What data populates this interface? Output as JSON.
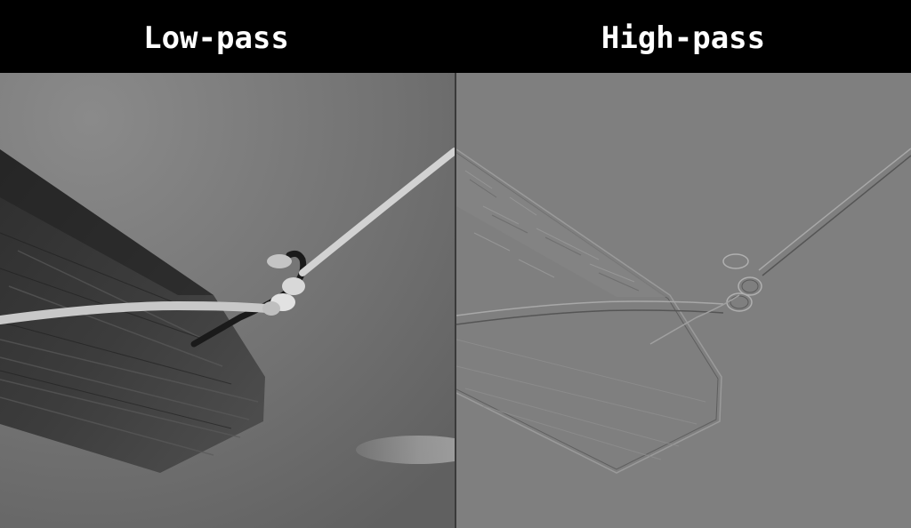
{
  "titles": {
    "left": "Low-pass",
    "right": "High-pass"
  },
  "panels": [
    {
      "name": "low-pass-image",
      "description_icon": "wood-board-with-rope-photo",
      "tone": "smooth grayscale"
    },
    {
      "name": "high-pass-image",
      "description_icon": "edge-map-of-wood-board-with-rope",
      "tone": "flat gray with edges"
    }
  ],
  "colors": {
    "background": "#000000",
    "title_text": "#ffffff",
    "low_sky": "#6f6f6f",
    "high_base": "#808080"
  }
}
